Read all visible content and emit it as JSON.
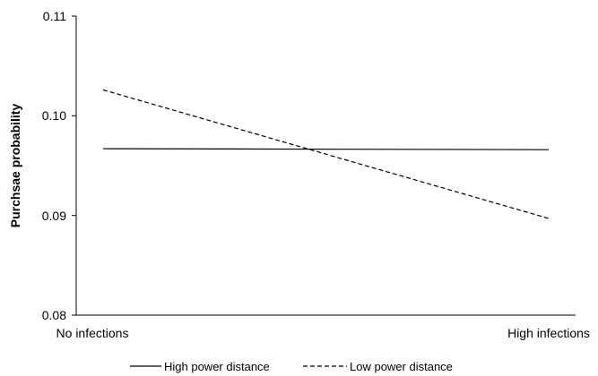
{
  "chart_data": {
    "type": "line",
    "title": "",
    "xlabel": "",
    "ylabel": "Purchsae probability",
    "categories": [
      "No infections",
      "High infections"
    ],
    "ylim": [
      0.08,
      0.11
    ],
    "yticks": [
      "0.08",
      "0.09",
      "0.10",
      "0.11"
    ],
    "grid": false,
    "legend_position": "bottom",
    "series": [
      {
        "name": "High power distance",
        "values": [
          0.0967,
          0.0966
        ],
        "style": "solid",
        "color": "#000000"
      },
      {
        "name": "Low power distance",
        "values": [
          0.1026,
          0.0897
        ],
        "style": "dashed",
        "color": "#000000"
      }
    ]
  }
}
